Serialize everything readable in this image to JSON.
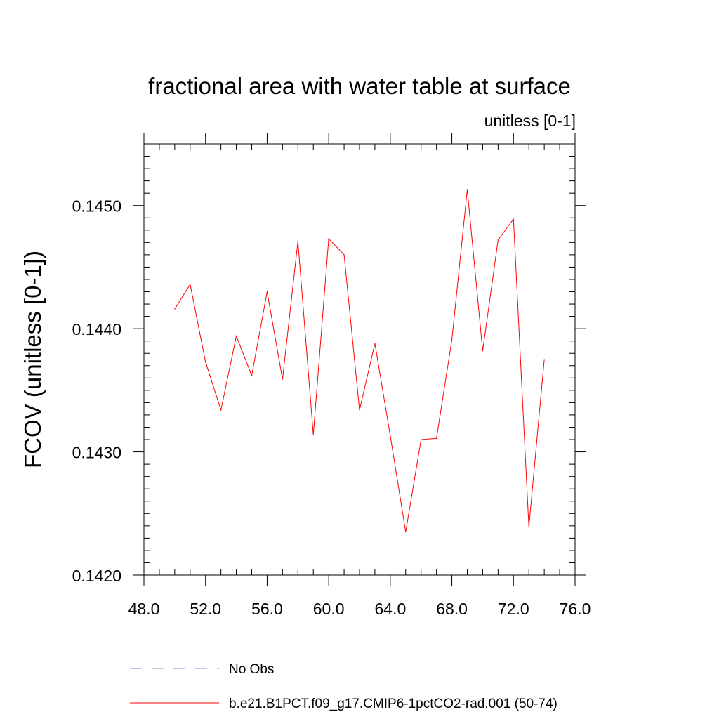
{
  "chart_data": {
    "type": "line",
    "title": "fractional area with water table at surface",
    "subtitle": "unitless [0-1]",
    "ylabel": "FCOV  (unitless [0-1])",
    "xlabel": "",
    "xlim": [
      48.0,
      76.0
    ],
    "ylim": [
      0.142,
      0.1455
    ],
    "x_ticks": [
      "48.0",
      "52.0",
      "56.0",
      "60.0",
      "64.0",
      "68.0",
      "72.0",
      "76.0"
    ],
    "y_ticks": [
      "0.1420",
      "0.1430",
      "0.1440",
      "0.1450"
    ],
    "grid": false,
    "legend_position": "bottom",
    "series": [
      {
        "name": "No Obs",
        "style": "dashed",
        "color": "#8a8ad6",
        "x": [],
        "values": []
      },
      {
        "name": "b.e21.B1PCT.f09_g17.CMIP6-1pctCO2-rad.001 (50-74)",
        "style": "solid",
        "color": "#ff0000",
        "x": [
          50,
          51,
          52,
          53,
          54,
          55,
          56,
          57,
          58,
          59,
          60,
          61,
          62,
          63,
          64,
          65,
          66,
          67,
          68,
          69,
          70,
          71,
          72,
          73,
          74
        ],
        "values": [
          0.14416,
          0.14436,
          0.14373,
          0.14334,
          0.14394,
          0.14362,
          0.1443,
          0.14359,
          0.14471,
          0.14314,
          0.14473,
          0.1446,
          0.14334,
          0.14388,
          0.14313,
          0.14235,
          0.1431,
          0.14311,
          0.14391,
          0.14513,
          0.14382,
          0.14472,
          0.14489,
          0.14239,
          0.14375
        ]
      }
    ]
  }
}
